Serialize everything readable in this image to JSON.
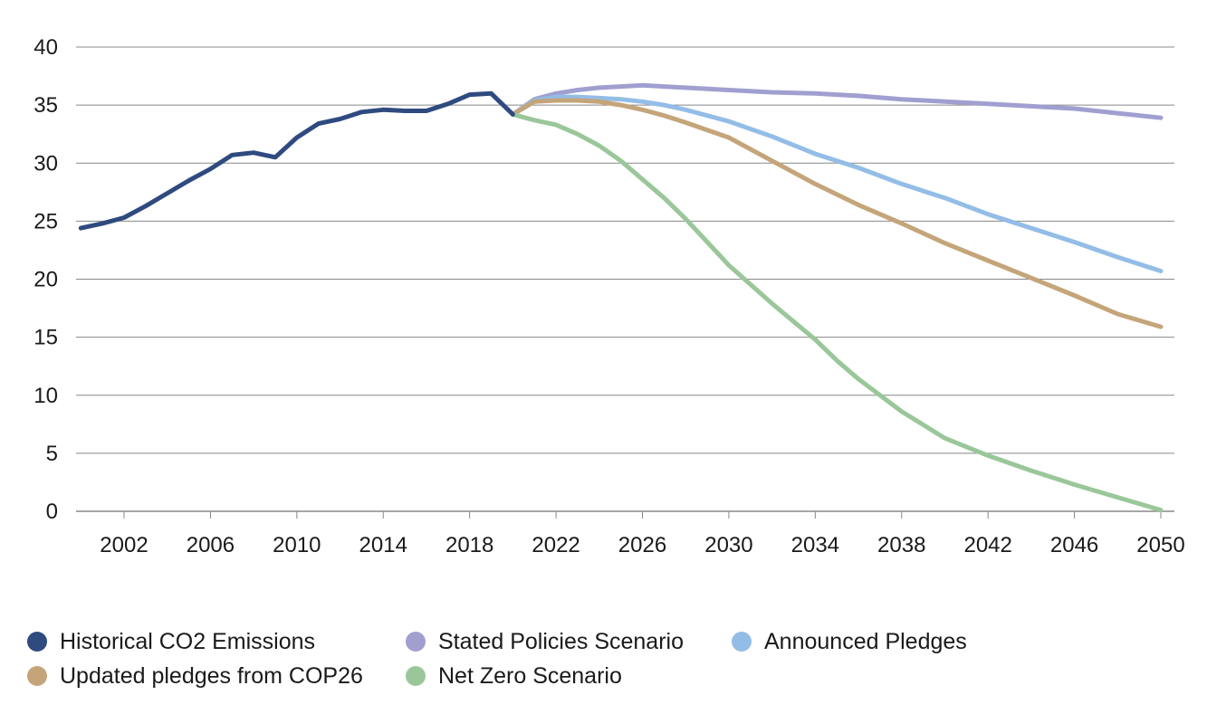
{
  "chart_data": {
    "type": "line",
    "xlim": [
      2000,
      2050
    ],
    "ylim": [
      0,
      40
    ],
    "yticks": [
      0,
      5,
      10,
      15,
      20,
      25,
      30,
      35,
      40
    ],
    "xticks": [
      2002,
      2006,
      2010,
      2014,
      2018,
      2022,
      2026,
      2030,
      2034,
      2038,
      2042,
      2046,
      2050
    ],
    "grid": "horizontal",
    "legend_position": "bottom",
    "series": [
      {
        "name": "Historical CO2 Emissions",
        "color": "#2f4a7f",
        "x": [
          2000,
          2001,
          2002,
          2003,
          2004,
          2005,
          2006,
          2007,
          2008,
          2009,
          2010,
          2011,
          2012,
          2013,
          2014,
          2015,
          2016,
          2017,
          2018,
          2019,
          2020
        ],
        "y": [
          24.4,
          24.8,
          25.3,
          26.3,
          27.4,
          28.5,
          29.5,
          30.7,
          30.9,
          30.5,
          32.2,
          33.4,
          33.8,
          34.4,
          34.6,
          34.5,
          34.5,
          35.1,
          35.9,
          36.0,
          34.2
        ]
      },
      {
        "name": "Stated Policies Scenario",
        "color": "#a09fd0",
        "x": [
          2020,
          2021,
          2022,
          2023,
          2024,
          2025,
          2026,
          2027,
          2028,
          2030,
          2032,
          2034,
          2035,
          2036,
          2038,
          2040,
          2042,
          2044,
          2046,
          2048,
          2050
        ],
        "y": [
          34.2,
          35.5,
          36.0,
          36.3,
          36.5,
          36.6,
          36.7,
          36.6,
          36.5,
          36.3,
          36.1,
          36.0,
          35.9,
          35.8,
          35.5,
          35.3,
          35.1,
          34.9,
          34.7,
          34.3,
          33.9
        ]
      },
      {
        "name": "Announced Pledges",
        "color": "#93bde6",
        "x": [
          2020,
          2021,
          2022,
          2023,
          2024,
          2025,
          2026,
          2027,
          2028,
          2030,
          2032,
          2034,
          2036,
          2038,
          2040,
          2042,
          2044,
          2046,
          2048,
          2050
        ],
        "y": [
          34.2,
          35.4,
          35.7,
          35.7,
          35.6,
          35.5,
          35.3,
          35.0,
          34.6,
          33.6,
          32.3,
          30.8,
          29.6,
          28.2,
          27.0,
          25.6,
          24.4,
          23.2,
          21.9,
          20.7
        ]
      },
      {
        "name": "Updated pledges from COP26",
        "color": "#c4a57a",
        "x": [
          2020,
          2021,
          2022,
          2023,
          2024,
          2025,
          2026,
          2027,
          2028,
          2030,
          2032,
          2034,
          2036,
          2038,
          2040,
          2042,
          2044,
          2046,
          2048,
          2050
        ],
        "y": [
          34.2,
          35.3,
          35.4,
          35.4,
          35.3,
          35.0,
          34.6,
          34.1,
          33.5,
          32.2,
          30.2,
          28.2,
          26.4,
          24.8,
          23.1,
          21.6,
          20.1,
          18.6,
          17.0,
          15.9
        ]
      },
      {
        "name": "Net Zero Scenario",
        "color": "#9ac79a",
        "x": [
          2020,
          2021,
          2022,
          2023,
          2024,
          2025,
          2026,
          2027,
          2028,
          2029,
          2030,
          2032,
          2034,
          2035,
          2036,
          2038,
          2040,
          2042,
          2044,
          2046,
          2048,
          2050
        ],
        "y": [
          34.2,
          33.7,
          33.3,
          32.5,
          31.5,
          30.2,
          28.6,
          27.0,
          25.2,
          23.2,
          21.2,
          17.9,
          14.8,
          13.0,
          11.4,
          8.6,
          6.3,
          4.8,
          3.5,
          2.3,
          1.2,
          0.1
        ]
      }
    ],
    "legend_rows": [
      [
        0,
        1,
        2
      ],
      [
        3,
        4
      ]
    ]
  }
}
